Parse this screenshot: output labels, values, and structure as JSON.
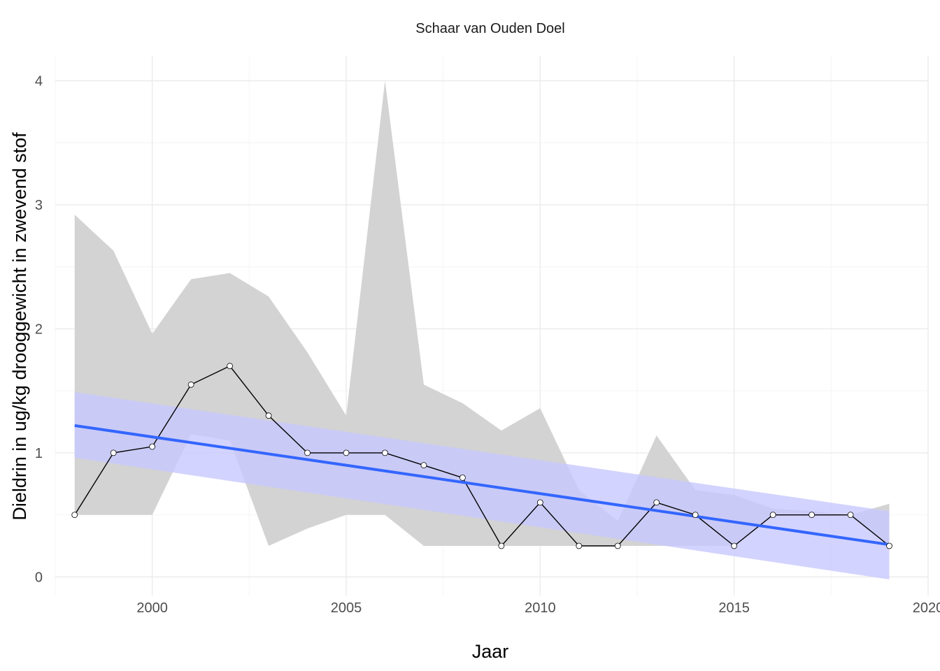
{
  "chart_data": {
    "type": "line",
    "title": "Schaar van Ouden Doel",
    "xlabel": "Jaar",
    "ylabel": "Dieldrin in ug/kg drooggewicht in zwevend stof",
    "xlim": [
      1997.5,
      2020
    ],
    "ylim": [
      -0.15,
      4.2
    ],
    "x_ticks": [
      2000,
      2005,
      2010,
      2015,
      2020
    ],
    "x_tick_labels": [
      "2000",
      "2005",
      "2010",
      "2015",
      "2020"
    ],
    "y_ticks": [
      0,
      1,
      2,
      3,
      4
    ],
    "y_tick_labels": [
      "0",
      "1",
      "2",
      "3",
      "4"
    ],
    "x_minor_ticks": [
      1997.5,
      2002.5,
      2007.5,
      2012.5,
      2017.5
    ],
    "y_minor_ticks": [
      0.5,
      1.5,
      2.5,
      3.5
    ],
    "grid": true,
    "legend": "none",
    "series": [
      {
        "type": "range",
        "x": [
          1998,
          1999,
          2000,
          2001,
          2002,
          2003,
          2004,
          2005,
          2006,
          2007,
          2008,
          2009,
          2010,
          2011,
          2012,
          2013,
          2014,
          2015,
          2016,
          2017,
          2018,
          2019
        ],
        "min": [
          0.5,
          0.5,
          0.5,
          1.15,
          1.1,
          0.25,
          0.39,
          0.5,
          0.5,
          0.25,
          0.25,
          0.25,
          0.25,
          0.25,
          0.25,
          0.25,
          0.25,
          0.25,
          0.5,
          0.5,
          0.5,
          0.25
        ],
        "max": [
          2.92,
          2.63,
          1.96,
          2.4,
          2.45,
          2.26,
          1.81,
          1.3,
          4.0,
          1.55,
          1.4,
          1.18,
          1.36,
          0.7,
          0.45,
          1.14,
          0.7,
          0.66,
          0.55,
          0.53,
          0.5,
          0.59
        ]
      },
      {
        "type": "line",
        "x": [
          1998,
          1999,
          2000,
          2001,
          2002,
          2003,
          2004,
          2005,
          2006,
          2007,
          2008,
          2009,
          2010,
          2011,
          2012,
          2013,
          2014,
          2015,
          2016,
          2017,
          2018,
          2019
        ],
        "values": [
          0.5,
          1.0,
          1.05,
          1.55,
          1.7,
          1.3,
          1.0,
          1.0,
          1.0,
          0.9,
          0.8,
          0.25,
          0.6,
          0.25,
          0.25,
          0.6,
          0.5,
          0.25,
          0.5,
          0.5,
          0.5,
          0.25
        ]
      },
      {
        "type": "trend",
        "x": [
          1998,
          2019
        ],
        "fit": [
          1.22,
          0.26
        ],
        "lower": [
          0.96,
          -0.02
        ],
        "upper": [
          1.49,
          0.53
        ]
      }
    ],
    "colors": {
      "range_fill": "#d3d3d3",
      "ci_fill": "#c8c8ff",
      "trend_line": "#3366ff",
      "series_line": "#000000",
      "marker_fill": "#ffffff",
      "grid_major": "#ebebeb",
      "grid_minor": "#f4f4f4"
    }
  }
}
